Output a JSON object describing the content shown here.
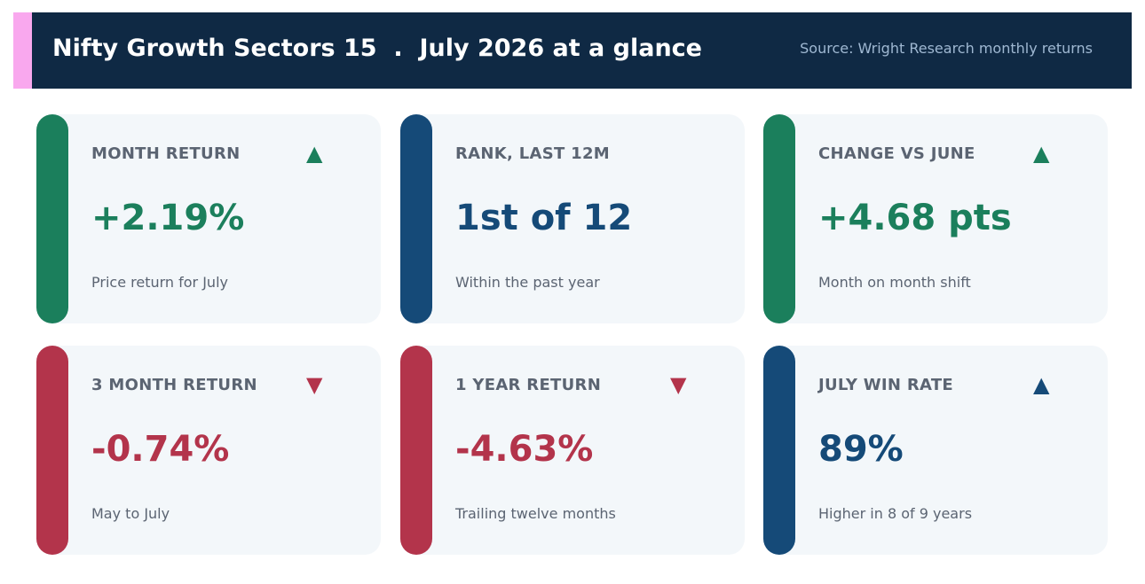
{
  "colors": {
    "header_bg": "#0f2944",
    "header_accent": "#f9a8ee",
    "source_text": "#9fb8d2",
    "card_bg": "#f3f7fa",
    "green": "#1b7f5c",
    "blue": "#154a78",
    "red": "#b3344b",
    "label_text": "#5b6472"
  },
  "header": {
    "title": "Nifty Growth Sectors 15  .  July 2026 at a glance",
    "source": "Source: Wright Research monthly returns"
  },
  "cards": [
    {
      "label": "MONTH RETURN",
      "arrow_icon": "triangle-up-icon",
      "arrow": "▲",
      "value": "+2.19%",
      "sub": "Price return for July",
      "tone": "green"
    },
    {
      "label": "RANK, LAST 12M",
      "arrow_icon": "",
      "arrow": "",
      "value": "1st of 12",
      "sub": "Within the past year",
      "tone": "blue"
    },
    {
      "label": "CHANGE VS JUNE",
      "arrow_icon": "triangle-up-icon",
      "arrow": "▲",
      "value": "+4.68 pts",
      "sub": "Month on month shift",
      "tone": "green"
    },
    {
      "label": "3 MONTH RETURN",
      "arrow_icon": "triangle-down-icon",
      "arrow": "▼",
      "value": "-0.74%",
      "sub": "May to July",
      "tone": "red"
    },
    {
      "label": "1 YEAR RETURN",
      "arrow_icon": "triangle-down-icon",
      "arrow": "▼",
      "value": "-4.63%",
      "sub": "Trailing twelve months",
      "tone": "red"
    },
    {
      "label": "JULY WIN RATE",
      "arrow_icon": "triangle-up-icon",
      "arrow": "▲",
      "value": "89%",
      "sub": "Higher in 8 of 9 years",
      "tone": "blue"
    }
  ]
}
